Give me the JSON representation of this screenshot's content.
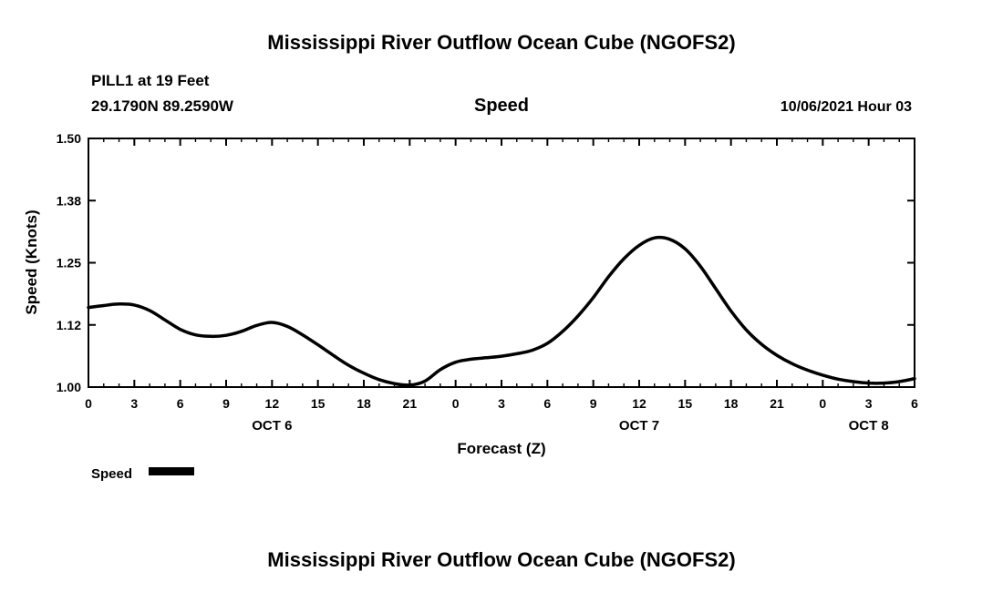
{
  "titles": {
    "top": "Mississippi River Outflow Ocean Cube (NGOFS2)",
    "bottom": "Mississippi River Outflow Ocean Cube (NGOFS2)"
  },
  "header": {
    "station": "PILL1 at 19 Feet",
    "coordinates": "29.1790N  89.2590W",
    "plot_label": "Speed",
    "datetime": "10/06/2021 Hour 03"
  },
  "colors": {
    "line": "#000000",
    "axis": "#000000",
    "background": "#ffffff"
  },
  "chart_data": {
    "type": "line",
    "title": "Speed",
    "xlabel": "Forecast (Z)",
    "ylabel": "Speed (Knots)",
    "ylim": [
      1.0,
      1.5
    ],
    "ytick_values": [
      1.0,
      1.125,
      1.25,
      1.375,
      1.5
    ],
    "ytick_labels": [
      "1.00",
      "1.12",
      "1.25",
      "1.38",
      "1.50"
    ],
    "x_hours_range": [
      0,
      54
    ],
    "xtick_step": 3,
    "xtick_labels": [
      "0",
      "3",
      "6",
      "9",
      "12",
      "15",
      "18",
      "21",
      "0",
      "3",
      "6",
      "9",
      "12",
      "15",
      "18",
      "21",
      "0",
      "3",
      "6"
    ],
    "date_labels": [
      {
        "label": "OCT 6",
        "hour": 12
      },
      {
        "label": "OCT 7",
        "hour": 36
      },
      {
        "label": "OCT 8",
        "hour": 51
      }
    ],
    "grid": false,
    "legend_position": "bottom-left",
    "legend": [
      {
        "label": "Speed",
        "color": "#000000"
      }
    ],
    "series": [
      {
        "name": "Speed",
        "x": [
          0,
          1,
          2,
          3,
          4,
          5,
          6,
          7,
          8,
          9,
          10,
          11,
          12,
          13,
          14,
          15,
          16,
          17,
          18,
          19,
          20,
          21,
          22,
          23,
          24,
          25,
          26,
          27,
          28,
          29,
          30,
          31,
          32,
          33,
          34,
          35,
          36,
          37,
          38,
          39,
          40,
          41,
          42,
          43,
          44,
          45,
          46,
          47,
          48,
          49,
          50,
          51,
          52,
          53,
          54
        ],
        "values": [
          1.16,
          1.164,
          1.167,
          1.165,
          1.154,
          1.135,
          1.116,
          1.105,
          1.102,
          1.104,
          1.112,
          1.124,
          1.13,
          1.122,
          1.105,
          1.085,
          1.064,
          1.044,
          1.028,
          1.015,
          1.007,
          1.004,
          1.012,
          1.035,
          1.05,
          1.056,
          1.059,
          1.062,
          1.067,
          1.074,
          1.088,
          1.112,
          1.143,
          1.18,
          1.222,
          1.258,
          1.285,
          1.3,
          1.297,
          1.278,
          1.243,
          1.198,
          1.153,
          1.115,
          1.086,
          1.064,
          1.047,
          1.034,
          1.024,
          1.016,
          1.011,
          1.008,
          1.008,
          1.011,
          1.017
        ]
      }
    ]
  }
}
